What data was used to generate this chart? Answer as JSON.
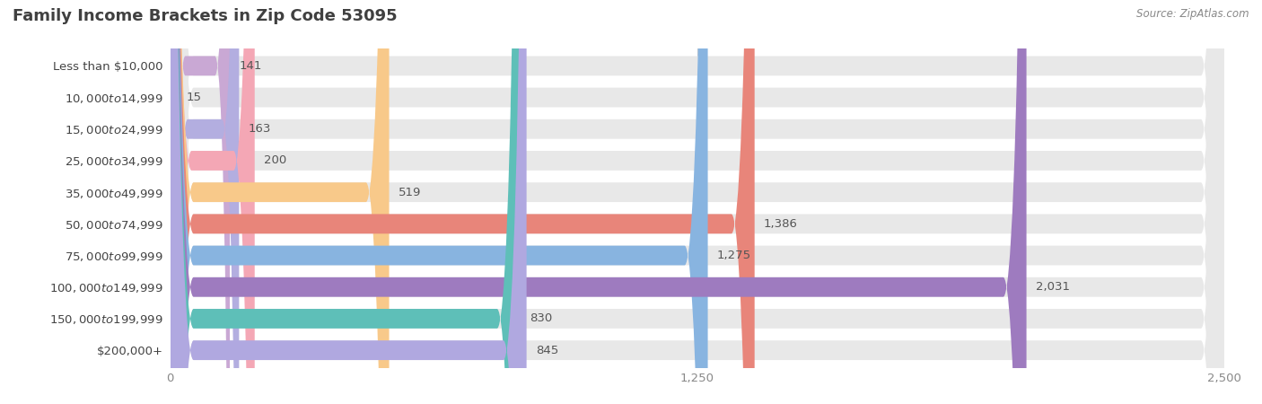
{
  "title": "Family Income Brackets in Zip Code 53095",
  "source": "Source: ZipAtlas.com",
  "categories": [
    "Less than $10,000",
    "$10,000 to $14,999",
    "$15,000 to $24,999",
    "$25,000 to $34,999",
    "$35,000 to $49,999",
    "$50,000 to $74,999",
    "$75,000 to $99,999",
    "$100,000 to $149,999",
    "$150,000 to $199,999",
    "$200,000+"
  ],
  "values": [
    141,
    15,
    163,
    200,
    519,
    1386,
    1275,
    2031,
    830,
    845
  ],
  "bar_colors": [
    "#c9a8d4",
    "#6ecfca",
    "#b3aee0",
    "#f4a7b5",
    "#f8c98a",
    "#e8857a",
    "#88b4e0",
    "#9e7bbf",
    "#5ebfb8",
    "#b0a8e0"
  ],
  "xlim": [
    0,
    2500
  ],
  "xticks": [
    0,
    1250,
    2500
  ],
  "bar_bg_color": "#e8e8e8",
  "title_color": "#404040",
  "value_color": "#555555",
  "tick_color": "#888888",
  "title_fontsize": 13,
  "label_fontsize": 9.5,
  "value_fontsize": 9.5,
  "tick_fontsize": 9.5,
  "bar_height": 0.62,
  "bar_gap": 0.12
}
